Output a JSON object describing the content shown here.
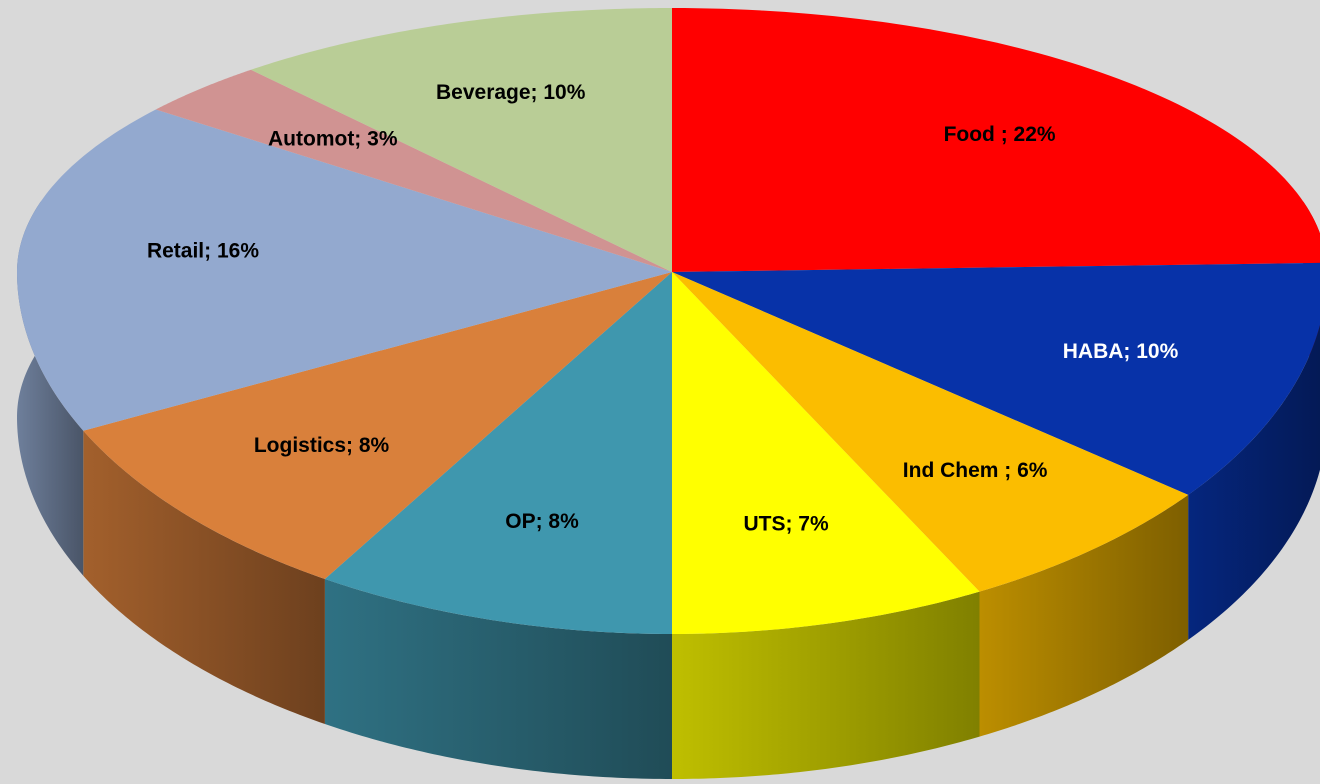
{
  "chart_data": {
    "type": "pie3d",
    "values": [
      22,
      10,
      6,
      7,
      8,
      8,
      16,
      3,
      10
    ],
    "value_labels": [
      "Food ; 22%",
      "HABA; 10%",
      "Ind Chem ; 6%",
      "UTS; 7%",
      "OP; 8%",
      "Logistics; 8%",
      "Retail; 16%",
      "Automot; 3%",
      "Beverage; 10%"
    ],
    "colors": [
      "#ff0000",
      "#0732a8",
      "#fbbd00",
      "#ffff00",
      "#3f97ae",
      "#d9803b",
      "#93a9cf",
      "#d09392",
      "#b9cd96"
    ],
    "label_colors": [
      "#000000",
      "#ffffff",
      "#000000",
      "#000000",
      "#000000",
      "#000000",
      "#000000",
      "#000000",
      "#000000"
    ]
  }
}
